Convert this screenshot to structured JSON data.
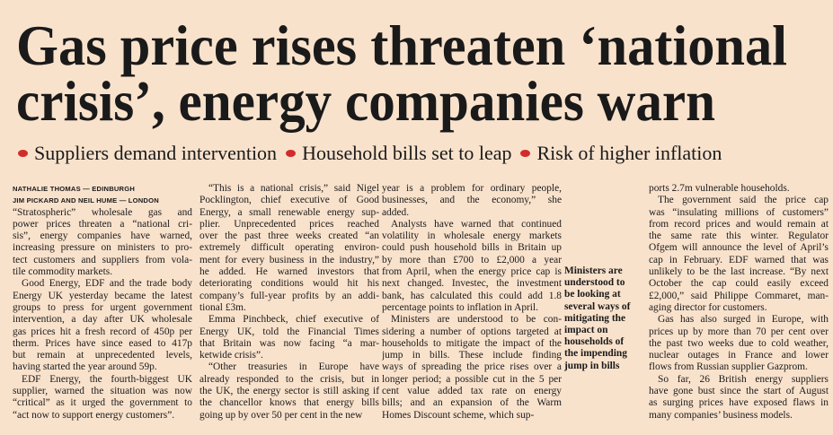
{
  "headline": [
    "Gas price rises threaten ‘national",
    "crisis’, energy companies warn"
  ],
  "subheads": [
    "Suppliers demand intervention",
    "Household bills set to leap",
    "Risk of higher inflation"
  ],
  "byline": [
    "NATHALIE THOMAS — EDINBURGH",
    "JIM PICKARD AND NEIL HUME — LONDON"
  ],
  "columns": [
    [
      [
        "“Stratospheric” wholesale gas and",
        "power prices threaten a “national cri-",
        "sis”, energy companies have warned,",
        "increasing pressure on ministers to pro-",
        "tect customers and suppliers from vola-",
        "tile commodity markets."
      ],
      [
        "Good Energy, EDF and the trade body",
        "Energy UK yesterday became the latest",
        "groups to press for urgent government",
        "intervention, a day after UK wholesale",
        "gas prices hit a fresh record of 450p per",
        "therm. Prices have since eased to 417p",
        "but remain at unprecedented levels,",
        "having started the year around 59p."
      ],
      [
        "EDF Energy, the fourth-biggest UK",
        "supplier, warned the situation was now",
        "“critical” as it urged the government to",
        "“act now to support energy customers”."
      ]
    ],
    [
      [
        "“This is a national crisis,” said Nigel",
        "Pocklington, chief executive of Good",
        "Energy, a small renewable energy sup-",
        "plier. Unprecedented prices reached",
        "over the past three weeks created “an",
        "extremely difficult operating environ-",
        "ment for every business in the industry,”",
        "he added. He warned investors that",
        "deteriorating conditions would hit his",
        "company’s full-year profits by an addi-",
        "tional £3m."
      ],
      [
        "Emma Pinchbeck, chief executive of",
        "Energy UK, told the Financial Times",
        "that Britain was now facing “a mar-",
        "ketwide crisis”."
      ],
      [
        "“Other treasuries in Europe have",
        "already responded to the crisis, but in",
        "the UK, the energy sector is still asking if",
        "the chancellor knows that energy bills",
        "going up by over 50 per cent in the new"
      ]
    ],
    [
      [
        "year is a problem for ordinary people,",
        "businesses, and the economy,” she",
        "added."
      ],
      [
        "Analysts have warned that continued",
        "volatility in wholesale energy markets",
        "could push household bills in Britain up",
        "by more than £700 to £2,000 a year",
        "from April, when the energy price cap is",
        "next changed. Investec, the investment",
        "bank, has calculated this could add 1.8",
        "percentage points to inflation in April."
      ],
      [
        "Ministers are understood to be con-",
        "sidering a number of options targeted at",
        "households to mitigate the impact of the",
        "jump in bills. These include finding",
        "ways of spreading the price rises over a",
        "longer period; a possible cut in the 5 per",
        "cent value added tax rate on energy",
        "bills; and an expansion of the Warm",
        "Homes Discount scheme, which sup-"
      ]
    ],
    [
      [
        "ports 2.7m vulnerable households."
      ],
      [
        "The government said the price cap",
        "was “insulating millions of customers”",
        "from record prices and would remain at",
        "the same rate this winter. Regulator",
        "Ofgem will announce the level of April’s",
        "cap in February. EDF warned that was",
        "unlikely to be the last increase. “By next",
        "October the cap could easily exceed",
        "£2,000,” said Philippe Commaret, man-",
        "aging director for customers."
      ],
      [
        "Gas has also surged in Europe, with",
        "prices up by more than 70 per cent over",
        "the past two weeks due to cold weather,",
        "nuclear outages in France and lower",
        "flows from Russian supplier Gazprom."
      ],
      [
        "So far, 26 British energy suppliers",
        "have gone bust since the start of August",
        "as surging prices have exposed flaws in",
        "many companies’ business models."
      ]
    ]
  ],
  "pull_quote": [
    "Ministers are",
    "understood to",
    "be looking at",
    "several ways of",
    "mitigating the",
    "impact on",
    "households of",
    "the impending",
    "jump in bills"
  ]
}
